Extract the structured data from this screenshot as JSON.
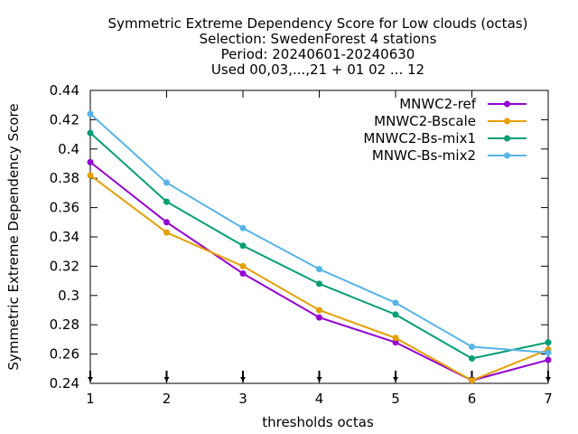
{
  "chart_data": {
    "type": "line",
    "title_lines": [
      "Symmetric Extreme Dependency Score  for Low clouds (octas)",
      "Selection: SwedenForest      4 stations",
      "Period: 20240601-20240630",
      "Used 00,03,...,21 + 01 02 ... 12"
    ],
    "xlabel": "thresholds octas",
    "ylabel": "Symmetric Extreme Dependency Score",
    "x": [
      1,
      2,
      3,
      4,
      5,
      6,
      7
    ],
    "xlim": [
      1,
      7
    ],
    "ylim": [
      0.24,
      0.44
    ],
    "x_ticks": [
      "1",
      "2",
      "3",
      "4",
      "5",
      "6",
      "7"
    ],
    "y_ticks": [
      "0.24",
      "0.26",
      "0.28",
      "0.3",
      "0.32",
      "0.34",
      "0.36",
      "0.38",
      "0.4",
      "0.42",
      "0.44"
    ],
    "grid": false,
    "legend_position": "top-right",
    "series": [
      {
        "name": "MNWC2-ref",
        "color": "#9400d3",
        "values": [
          0.391,
          0.35,
          0.315,
          0.285,
          0.268,
          0.242,
          0.256
        ]
      },
      {
        "name": "MNWC2-Bscale",
        "color": "#e69f00",
        "values": [
          0.382,
          0.343,
          0.32,
          0.29,
          0.271,
          0.242,
          0.263
        ]
      },
      {
        "name": "MNWC2-Bs-mix1",
        "color": "#009e73",
        "values": [
          0.411,
          0.364,
          0.334,
          0.308,
          0.287,
          0.257,
          0.268
        ]
      },
      {
        "name": "MNWC-Bs-mix2",
        "color": "#56b4e9",
        "values": [
          0.424,
          0.377,
          0.346,
          0.318,
          0.295,
          0.265,
          0.261
        ]
      }
    ]
  }
}
